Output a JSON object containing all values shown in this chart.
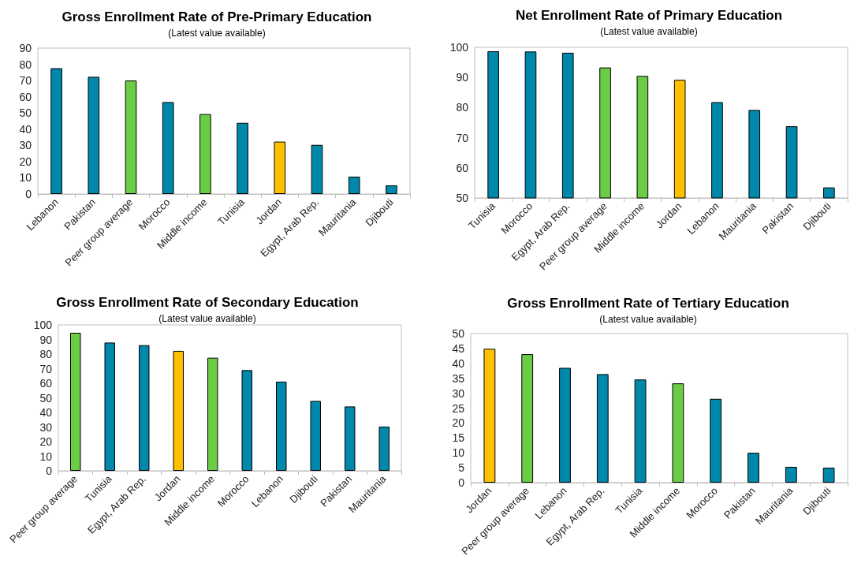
{
  "chart_data": [
    {
      "type": "bar",
      "title": "Gross Enrollment Rate of Pre-Primary Education",
      "subtitle": "(Latest value available)",
      "categories": [
        "Lebanon",
        "Pakistan",
        "Peer group average",
        "Morocco",
        "Middle income",
        "Tunisia",
        "Jordan",
        "Egypt, Arab Rep.",
        "Mauritania",
        "Djibouti"
      ],
      "values": [
        77.6,
        72.3,
        70.0,
        56.7,
        49.3,
        43.9,
        32.3,
        30.3,
        10.7,
        5.3
      ],
      "colors": [
        "#0088ab",
        "#0088ab",
        "#6acd45",
        "#0088ab",
        "#6acd45",
        "#0088ab",
        "#ffc000",
        "#0088ab",
        "#0088ab",
        "#0088ab"
      ],
      "ylim": [
        0,
        90
      ],
      "yticks": [
        0,
        10,
        20,
        30,
        40,
        50,
        60,
        70,
        80,
        90
      ]
    },
    {
      "type": "bar",
      "title": "Net Enrollment Rate of Primary Education",
      "subtitle": "(Latest value available)",
      "categories": [
        "Tunisia",
        "Morocco",
        "Egypt, Arab Rep.",
        "Peer group average",
        "Middle income",
        "Jordan",
        "Lebanon",
        "Mauritania",
        "Pakistan",
        "Djibouti"
      ],
      "values": [
        98.7,
        98.6,
        98.2,
        93.3,
        90.5,
        89.2,
        81.8,
        79.2,
        73.8,
        53.5
      ],
      "colors": [
        "#0088ab",
        "#0088ab",
        "#0088ab",
        "#6acd45",
        "#6acd45",
        "#ffc000",
        "#0088ab",
        "#0088ab",
        "#0088ab",
        "#0088ab"
      ],
      "ylim": [
        50,
        100
      ],
      "yticks": [
        50,
        60,
        70,
        80,
        90,
        100
      ]
    },
    {
      "type": "bar",
      "title": "Gross Enrollment Rate of Secondary Education",
      "subtitle": "(Latest value available)",
      "categories": [
        "Peer group average",
        "Tunisia",
        "Egypt, Arab Rep.",
        "Jordan",
        "Middle income",
        "Morocco",
        "Lebanon",
        "Djibouti",
        "Pakistan",
        "Mauritania"
      ],
      "values": [
        94.6,
        87.9,
        86.1,
        82.2,
        77.5,
        69.0,
        61.1,
        47.9,
        44.1,
        30.3
      ],
      "colors": [
        "#6acd45",
        "#0088ab",
        "#0088ab",
        "#ffc000",
        "#6acd45",
        "#0088ab",
        "#0088ab",
        "#0088ab",
        "#0088ab",
        "#0088ab"
      ],
      "ylim": [
        0,
        100
      ],
      "yticks": [
        0,
        10,
        20,
        30,
        40,
        50,
        60,
        70,
        80,
        90,
        100
      ]
    },
    {
      "type": "bar",
      "title": "Gross Enrollment Rate of Tertiary Education",
      "subtitle": "(Latest value available)",
      "categories": [
        "Jordan",
        "Peer group average",
        "Lebanon",
        "Egypt, Arab Rep.",
        "Tunisia",
        "Middle income",
        "Morocco",
        "Pakistan",
        "Mauritania",
        "Djibouti"
      ],
      "values": [
        44.9,
        43.1,
        38.5,
        36.4,
        34.6,
        33.3,
        28.1,
        10.0,
        5.3,
        5.0
      ],
      "colors": [
        "#ffc000",
        "#6acd45",
        "#0088ab",
        "#0088ab",
        "#0088ab",
        "#6acd45",
        "#0088ab",
        "#0088ab",
        "#0088ab",
        "#0088ab"
      ],
      "ylim": [
        0,
        50
      ],
      "yticks": [
        0,
        5,
        10,
        15,
        20,
        25,
        30,
        35,
        40,
        45,
        50
      ]
    }
  ]
}
